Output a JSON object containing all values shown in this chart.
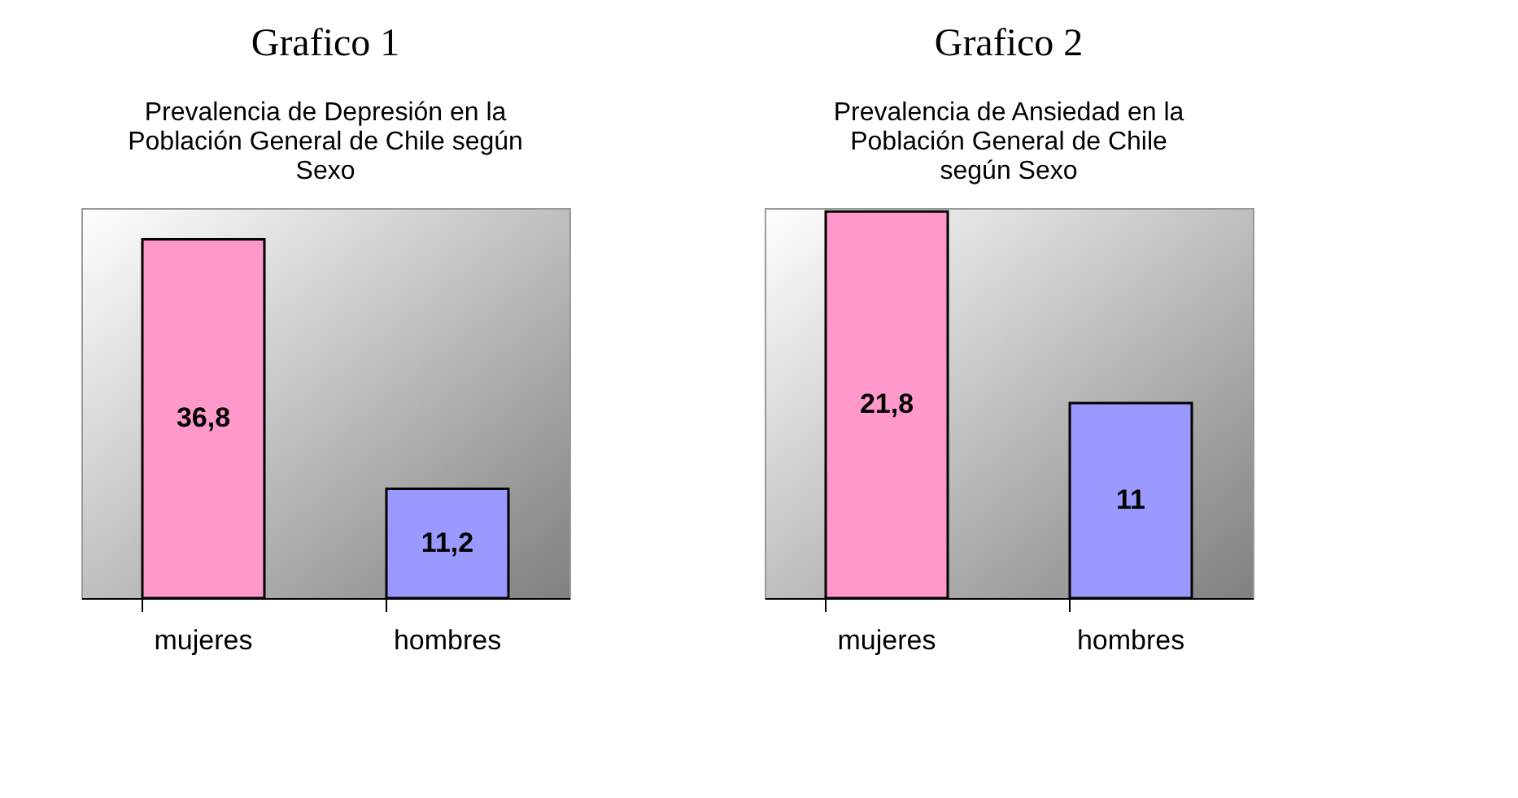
{
  "chart_data": [
    {
      "type": "bar",
      "title": "Grafico 1",
      "subtitle": "Prevalencia de Depresión en la\nPoblación General de Chile según\nSexo",
      "categories": [
        "mujeres",
        "hombres"
      ],
      "values": [
        36.8,
        11.2
      ],
      "colors": [
        "#ff99cc",
        "#9999ff"
      ],
      "value_labels": [
        "36,8",
        "11,2"
      ]
    },
    {
      "type": "bar",
      "title": "Grafico 2",
      "subtitle": "Prevalencia de Ansiedad en la\nPoblación General de Chile\nsegún Sexo",
      "categories": [
        "mujeres",
        "hombres"
      ],
      "values": [
        21.8,
        11
      ],
      "colors": [
        "#ff99cc",
        "#9999ff"
      ],
      "value_labels": [
        "21,8",
        "11"
      ]
    }
  ]
}
